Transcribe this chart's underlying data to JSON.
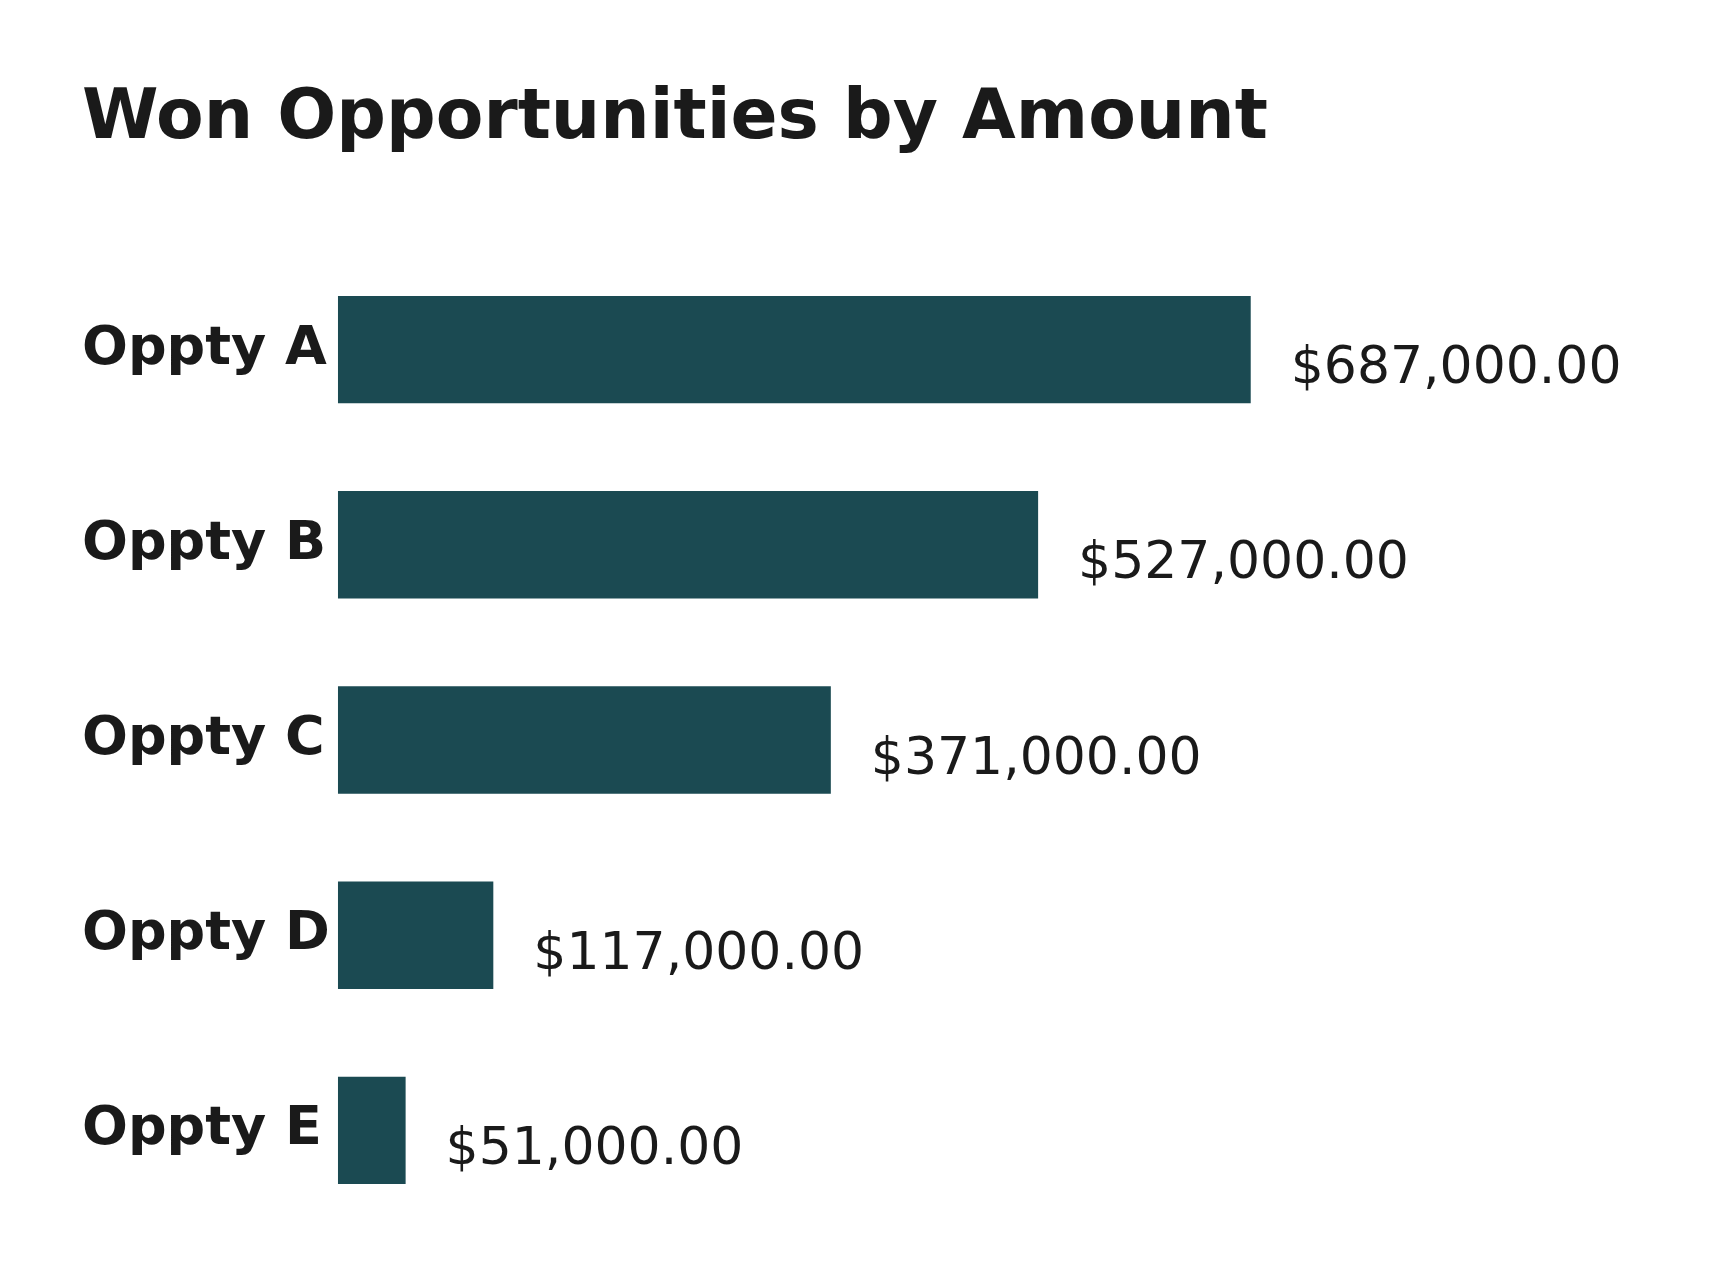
{
  "chart_data": {
    "type": "bar",
    "title": "Won Opportunities by Amount",
    "orientation": "horizontal",
    "categories": [
      "Oppty A",
      "Oppty B",
      "Oppty C",
      "Oppty D",
      "Oppty E"
    ],
    "values": [
      687000,
      527000,
      371000,
      117000,
      51000
    ],
    "color": "#1b4a52",
    "value_labels": [
      "$687,000.00",
      "$527,000.00",
      "$371,000.00",
      "$117,000.00",
      "$51,000.00"
    ]
  }
}
